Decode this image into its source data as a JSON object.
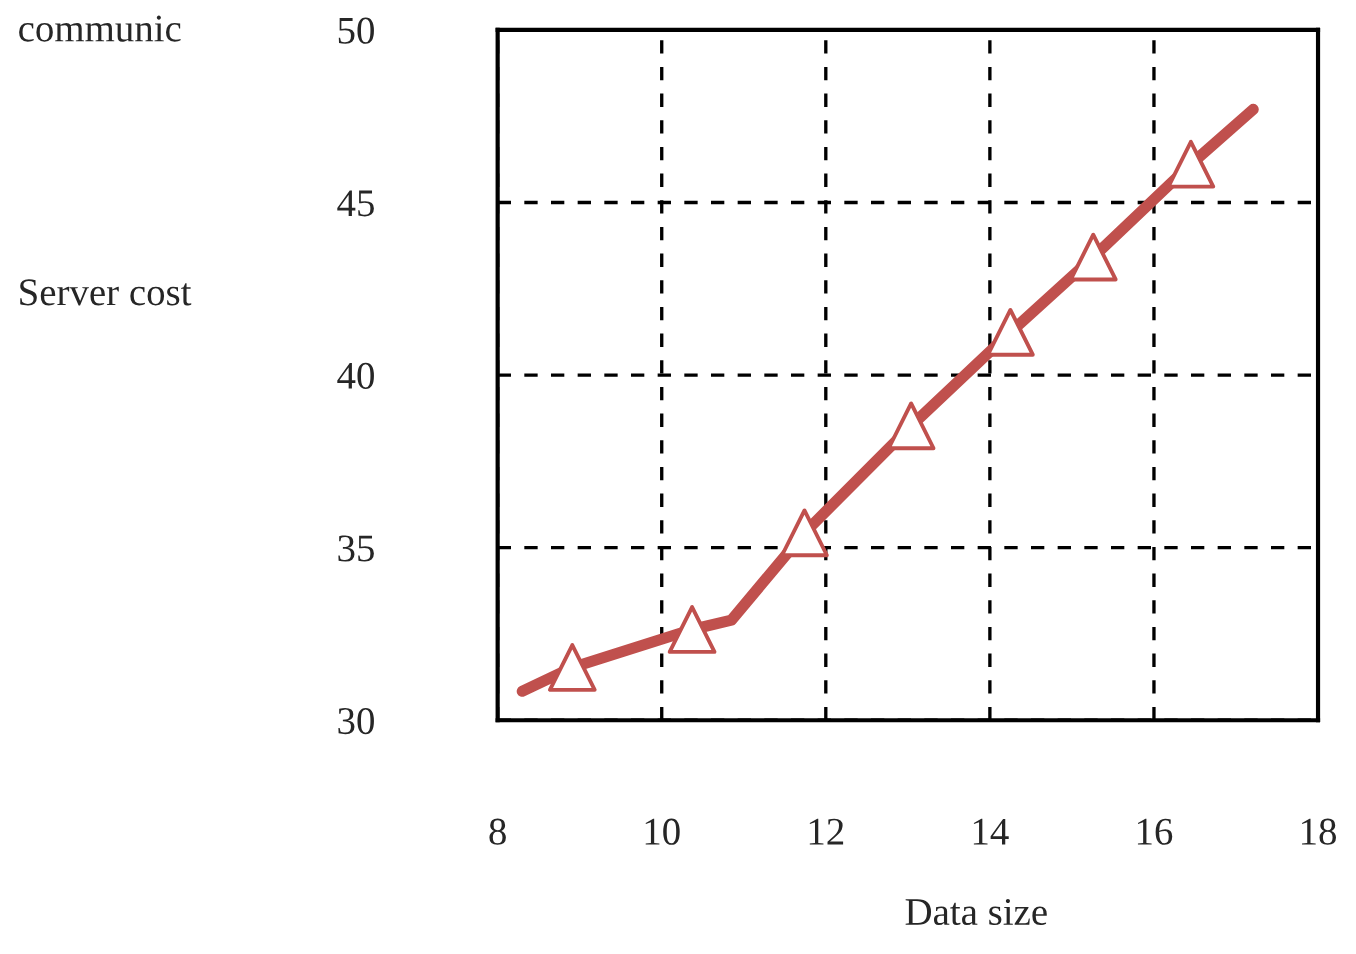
{
  "chart_data": {
    "type": "line",
    "title": "communic",
    "xlabel": "Data size",
    "ylabel": "Server cost",
    "xlim": [
      8,
      18
    ],
    "xticks": [
      8,
      10,
      12,
      14,
      16,
      18
    ],
    "ylim": [
      30,
      50
    ],
    "yticks": [
      30,
      35,
      40,
      45,
      50
    ],
    "grid": true,
    "series": [
      {
        "type": "line",
        "color": "#c0504d",
        "marker": "none",
        "line_style": "solid",
        "x": [
          8.3,
          8.91,
          10.37,
          10.85,
          11.74,
          13.04,
          14.25,
          15.26,
          16.45,
          17.21
        ],
        "values": [
          30.84,
          31.53,
          32.63,
          32.9,
          35.43,
          38.53,
          41.24,
          43.42,
          46.11,
          47.7
        ]
      },
      {
        "type": "scatter",
        "color": "#c0504d",
        "marker": "triangle",
        "x": [
          8.91,
          10.37,
          11.74,
          13.04,
          14.25,
          15.26,
          16.45
        ],
        "values": [
          31.53,
          32.63,
          35.43,
          38.53,
          41.24,
          43.42,
          46.11
        ]
      }
    ]
  }
}
